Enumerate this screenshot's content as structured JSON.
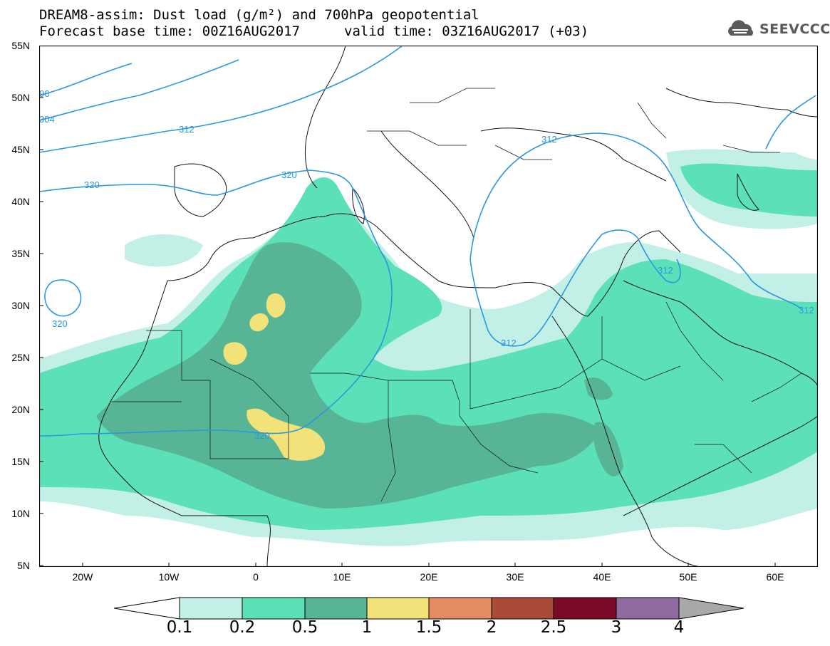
{
  "header": {
    "title_line1": "DREAM8-assim: Dust load (g/m²) and 700hPa geopotential",
    "forecast_base": "Forecast base time: 00Z16AUG2017",
    "valid_time": "valid time: 03Z16AUG2017 (+03)"
  },
  "logo": {
    "text": "SEEVCCC",
    "icon": "cloud-logo-icon"
  },
  "axes": {
    "lat_labels": [
      "55N",
      "50N",
      "45N",
      "40N",
      "35N",
      "30N",
      "25N",
      "20N",
      "15N",
      "10N",
      "5N"
    ],
    "lon_labels": [
      "20W",
      "10W",
      "0",
      "10E",
      "20E",
      "30E",
      "40E",
      "50E",
      "60E"
    ]
  },
  "contours": {
    "labels": [
      "96",
      "304",
      "312",
      "320",
      "320",
      "320",
      "320",
      "312",
      "312",
      "312",
      "312"
    ]
  },
  "colorbar": {
    "ticks": [
      "0.1",
      "0.2",
      "0.5",
      "1",
      "1.5",
      "2",
      "2.5",
      "3",
      "4"
    ],
    "colors": {
      "under": "#ffffff",
      "c1": "#c2f0e6",
      "c2": "#5ce0b8",
      "c3": "#57b595",
      "c4": "#f1e27a",
      "c5": "#e58c63",
      "c6": "#aa4a39",
      "c7": "#7b0a26",
      "c8": "#8e6aa0",
      "over": "#a8a8a8"
    }
  }
}
